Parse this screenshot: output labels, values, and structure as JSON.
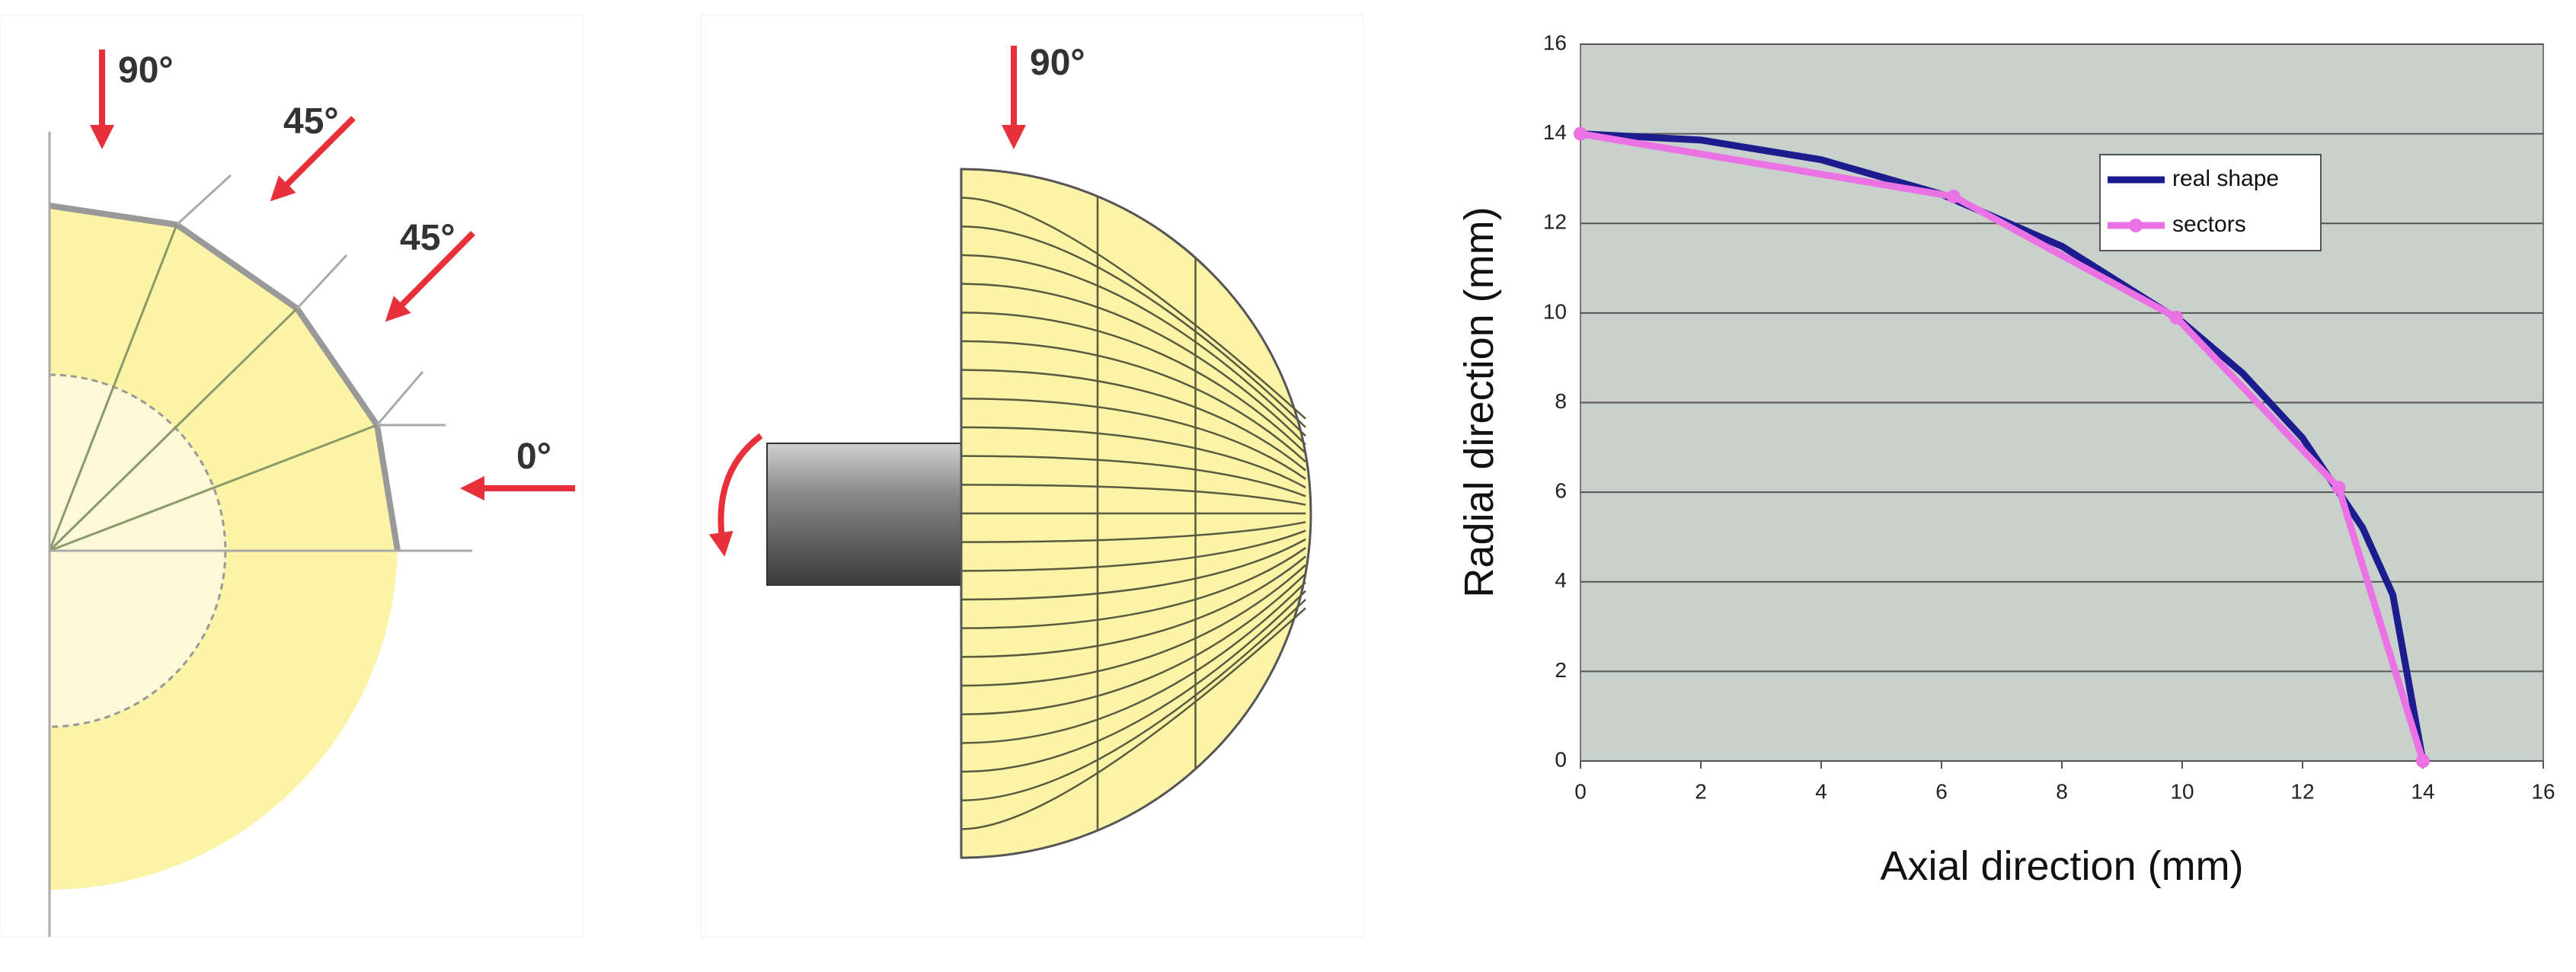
{
  "diagram": {
    "left_labels": [
      "90°",
      "45°",
      "45°",
      "0°"
    ],
    "middle_label": "90°"
  },
  "chart_data": {
    "type": "line",
    "xlabel": "Axial direction (mm)",
    "ylabel": "Radial direction (mm)",
    "xlim": [
      0,
      16
    ],
    "ylim": [
      0,
      16
    ],
    "xticks": [
      0,
      2,
      4,
      6,
      8,
      10,
      12,
      14,
      16
    ],
    "yticks": [
      0,
      2,
      4,
      6,
      8,
      10,
      12,
      14,
      16
    ],
    "grid": true,
    "legend": "upper right",
    "series": [
      {
        "name": "real shape",
        "color": "#1c1c8e",
        "x": [
          0,
          2,
          4,
          6,
          8,
          10,
          11,
          12,
          13,
          13.5,
          14
        ],
        "values": [
          14,
          13.86,
          13.42,
          12.65,
          11.49,
          9.8,
          8.66,
          7.21,
          5.2,
          3.71,
          0
        ]
      },
      {
        "name": "sectors",
        "color": "#ea72e4",
        "x": [
          0,
          6.2,
          9.9,
          12.6,
          14
        ],
        "values": [
          14,
          12.6,
          9.9,
          6.1,
          0
        ],
        "markers": true
      }
    ]
  }
}
